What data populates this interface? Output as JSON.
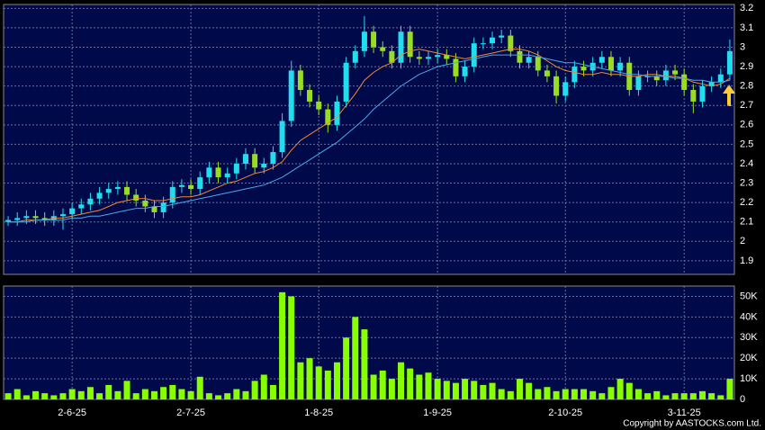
{
  "chart_data": [
    {
      "type": "candlestick",
      "up_color": "#22ddee",
      "down_color": "#99dd22",
      "background": "#000a4a",
      "grid": true,
      "ylim": [
        1.83,
        3.22
      ],
      "yticks": [
        1.9,
        2,
        2.1,
        2.2,
        2.3,
        2.4,
        2.5,
        2.6,
        2.7,
        2.8,
        2.9,
        3,
        3.1,
        3.2
      ],
      "open": [
        2.1,
        2.11,
        2.12,
        2.13,
        2.12,
        2.11,
        2.13,
        2.14,
        2.17,
        2.19,
        2.22,
        2.25,
        2.27,
        2.28,
        2.24,
        2.21,
        2.18,
        2.15,
        2.2,
        2.28,
        2.29,
        2.27,
        2.33,
        2.38,
        2.33,
        2.35,
        2.4,
        2.45,
        2.38,
        2.4,
        2.46,
        2.62,
        2.88,
        2.78,
        2.72,
        2.68,
        2.6,
        2.72,
        2.92,
        2.98,
        3.08,
        3.0,
        2.98,
        2.92,
        3.08,
        2.95,
        2.94,
        2.95,
        2.96,
        2.94,
        2.85,
        2.9,
        3.02,
        3.02,
        3.05,
        3.06,
        2.98,
        2.92,
        2.95,
        2.88,
        2.85,
        2.75,
        2.82,
        2.9,
        2.88,
        2.92,
        2.95,
        2.88,
        2.92,
        2.78,
        2.85,
        2.85,
        2.83,
        2.88,
        2.86,
        2.78,
        2.72,
        2.8,
        2.82,
        2.86
      ],
      "high": [
        2.13,
        2.15,
        2.16,
        2.16,
        2.15,
        2.16,
        2.17,
        2.2,
        2.22,
        2.25,
        2.28,
        2.3,
        2.31,
        2.31,
        2.27,
        2.24,
        2.21,
        2.23,
        2.31,
        2.32,
        2.32,
        2.36,
        2.41,
        2.41,
        2.38,
        2.43,
        2.48,
        2.48,
        2.43,
        2.49,
        2.66,
        2.93,
        2.91,
        2.81,
        2.75,
        2.71,
        2.75,
        2.95,
        3.01,
        3.16,
        3.11,
        3.03,
        3.01,
        3.11,
        3.11,
        2.98,
        2.98,
        2.99,
        2.99,
        2.97,
        2.93,
        3.05,
        3.05,
        3.08,
        3.09,
        3.09,
        3.01,
        2.98,
        2.98,
        2.91,
        2.88,
        2.85,
        2.93,
        2.93,
        2.95,
        2.98,
        2.98,
        2.95,
        2.95,
        2.88,
        2.88,
        2.88,
        2.91,
        2.91,
        2.89,
        2.81,
        2.83,
        2.85,
        2.89,
        3.04
      ],
      "low": [
        2.08,
        2.08,
        2.09,
        2.09,
        2.08,
        2.08,
        2.06,
        2.11,
        2.14,
        2.16,
        2.19,
        2.22,
        2.24,
        2.21,
        2.18,
        2.15,
        2.12,
        2.12,
        2.17,
        2.25,
        2.24,
        2.24,
        2.3,
        2.3,
        2.3,
        2.32,
        2.37,
        2.35,
        2.35,
        2.37,
        2.43,
        2.59,
        2.75,
        2.69,
        2.65,
        2.56,
        2.57,
        2.69,
        2.89,
        2.95,
        2.97,
        2.95,
        2.89,
        2.89,
        2.92,
        2.91,
        2.91,
        2.92,
        2.91,
        2.82,
        2.82,
        2.87,
        2.99,
        2.99,
        3.02,
        2.95,
        2.89,
        2.89,
        2.85,
        2.82,
        2.71,
        2.72,
        2.79,
        2.85,
        2.85,
        2.89,
        2.85,
        2.85,
        2.75,
        2.75,
        2.82,
        2.8,
        2.8,
        2.83,
        2.75,
        2.66,
        2.69,
        2.77,
        2.79,
        2.83
      ],
      "close": [
        2.11,
        2.12,
        2.13,
        2.12,
        2.11,
        2.13,
        2.14,
        2.17,
        2.19,
        2.22,
        2.25,
        2.27,
        2.28,
        2.24,
        2.21,
        2.18,
        2.15,
        2.2,
        2.28,
        2.29,
        2.27,
        2.33,
        2.38,
        2.33,
        2.35,
        2.4,
        2.45,
        2.38,
        2.4,
        2.46,
        2.62,
        2.88,
        2.78,
        2.72,
        2.68,
        2.6,
        2.72,
        2.92,
        2.98,
        3.08,
        3.0,
        2.98,
        2.92,
        3.08,
        2.95,
        2.94,
        2.95,
        2.96,
        2.94,
        2.85,
        2.9,
        3.02,
        3.02,
        3.05,
        3.06,
        2.98,
        2.92,
        2.95,
        2.88,
        2.85,
        2.75,
        2.82,
        2.9,
        2.88,
        2.92,
        2.95,
        2.88,
        2.92,
        2.78,
        2.85,
        2.85,
        2.83,
        2.88,
        2.86,
        2.78,
        2.72,
        2.8,
        2.82,
        2.86,
        2.98
      ],
      "series": [
        {
          "color": "#f08a30",
          "values": [
            2.1,
            2.1,
            2.11,
            2.11,
            2.11,
            2.12,
            2.12,
            2.13,
            2.14,
            2.15,
            2.16,
            2.18,
            2.2,
            2.21,
            2.22,
            2.22,
            2.21,
            2.21,
            2.22,
            2.23,
            2.23,
            2.24,
            2.26,
            2.28,
            2.3,
            2.31,
            2.33,
            2.35,
            2.36,
            2.38,
            2.41,
            2.47,
            2.52,
            2.55,
            2.58,
            2.61,
            2.64,
            2.7,
            2.76,
            2.83,
            2.87,
            2.9,
            2.92,
            2.96,
            2.98,
            2.99,
            2.98,
            2.97,
            2.96,
            2.95,
            2.94,
            2.95,
            2.96,
            2.97,
            2.98,
            2.99,
            2.99,
            2.98,
            2.96,
            2.93,
            2.9,
            2.88,
            2.87,
            2.86,
            2.86,
            2.87,
            2.86,
            2.86,
            2.85,
            2.85,
            2.86,
            2.86,
            2.85,
            2.85,
            2.84,
            2.82,
            2.81,
            2.8,
            2.81,
            2.84
          ]
        },
        {
          "color": "#4aa8e8",
          "values": [
            2.1,
            2.1,
            2.1,
            2.11,
            2.11,
            2.11,
            2.11,
            2.12,
            2.12,
            2.13,
            2.13,
            2.14,
            2.15,
            2.16,
            2.17,
            2.17,
            2.18,
            2.18,
            2.19,
            2.2,
            2.21,
            2.22,
            2.23,
            2.24,
            2.25,
            2.26,
            2.27,
            2.28,
            2.29,
            2.31,
            2.33,
            2.36,
            2.39,
            2.42,
            2.45,
            2.48,
            2.51,
            2.55,
            2.59,
            2.63,
            2.68,
            2.72,
            2.76,
            2.8,
            2.83,
            2.86,
            2.88,
            2.9,
            2.91,
            2.92,
            2.93,
            2.94,
            2.95,
            2.96,
            2.96,
            2.96,
            2.96,
            2.96,
            2.95,
            2.94,
            2.93,
            2.92,
            2.92,
            2.91,
            2.9,
            2.89,
            2.88,
            2.87,
            2.86,
            2.86,
            2.85,
            2.85,
            2.85,
            2.84,
            2.84,
            2.83,
            2.83,
            2.82,
            2.82,
            2.83
          ]
        }
      ]
    },
    {
      "type": "bar",
      "color": "#88ff00",
      "background": "#000a4a",
      "grid": true,
      "ylim": [
        0,
        55000
      ],
      "yticks": [
        0,
        {
          "value": 10000,
          "label": "10K"
        },
        {
          "value": 20000,
          "label": "20K"
        },
        {
          "value": 30000,
          "label": "30K"
        },
        {
          "value": 40000,
          "label": "40K"
        },
        {
          "value": 50000,
          "label": "50K"
        }
      ],
      "categories": [
        null,
        null,
        null,
        null,
        null,
        null,
        null,
        "2-6-25",
        null,
        null,
        null,
        null,
        null,
        null,
        null,
        null,
        null,
        null,
        null,
        null,
        "2-7-25",
        null,
        null,
        null,
        null,
        null,
        null,
        null,
        null,
        null,
        null,
        null,
        null,
        null,
        "1-8-25",
        null,
        null,
        null,
        null,
        null,
        null,
        null,
        null,
        null,
        null,
        null,
        null,
        "1-9-25",
        null,
        null,
        null,
        null,
        null,
        null,
        null,
        null,
        null,
        null,
        null,
        null,
        null,
        "2-10-25",
        null,
        null,
        null,
        null,
        null,
        null,
        null,
        null,
        null,
        null,
        null,
        null,
        "3-11-25",
        null,
        null,
        null,
        null,
        null
      ],
      "values": [
        3000,
        5000,
        2000,
        4000,
        3000,
        2000,
        3000,
        5000,
        4000,
        6000,
        3000,
        7000,
        4000,
        9000,
        3000,
        5000,
        4000,
        6000,
        7000,
        5000,
        4000,
        11000,
        3000,
        2000,
        3000,
        5000,
        4000,
        9000,
        12000,
        7000,
        52000,
        50000,
        18000,
        20000,
        16000,
        14000,
        18000,
        30000,
        40000,
        34000,
        12000,
        14000,
        10000,
        18000,
        15000,
        12000,
        13000,
        10000,
        9000,
        8000,
        10000,
        9000,
        7000,
        8000,
        5000,
        4000,
        10000,
        8000,
        5000,
        6000,
        4000,
        5000,
        5000,
        5000,
        4000,
        3000,
        6000,
        10000,
        8000,
        5000,
        3000,
        4000,
        2000,
        3000,
        3000,
        3000,
        4000,
        3000,
        2000,
        10000
      ]
    }
  ],
  "copyright": "Copyright by AASTOCKS.com Ltd."
}
